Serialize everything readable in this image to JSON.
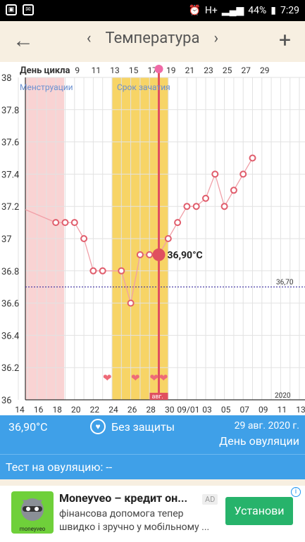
{
  "statusbar": {
    "battery": "44%",
    "time": "7:29",
    "network": "H+"
  },
  "header": {
    "title": "Температура",
    "back": "←",
    "prev": "‹",
    "next": "›",
    "add": "+"
  },
  "chart": {
    "cycle_label": "День цикла",
    "period_label": "Менструации",
    "fertile_label": "Срок зачатия",
    "ref_label": "36,70",
    "selected_label": "36,90°C",
    "year_label": "2020",
    "month_marker": "авг.",
    "y_ticks": [
      "38",
      "37.8",
      "37.6",
      "37.4",
      "37.2",
      "37",
      "36.8",
      "36.6",
      "36.4",
      "36.2",
      "36"
    ],
    "top_ticks": [
      "9",
      "11",
      "13",
      "15",
      "17",
      "19",
      "21",
      "23",
      "25",
      "27",
      "29"
    ],
    "bottom_ticks": [
      "14",
      "16",
      "18",
      "20",
      "22",
      "24",
      "26",
      "28",
      "30",
      "09/01",
      "03",
      "05",
      "07",
      "09",
      "11",
      "13"
    ]
  },
  "chart_data": {
    "type": "line",
    "title": "Температура",
    "ylim": [
      36,
      38
    ],
    "x_days": [
      18,
      19,
      20,
      21,
      22,
      23,
      25,
      26,
      27,
      28,
      29,
      30,
      31,
      32,
      33,
      34,
      35,
      36,
      37,
      38,
      39
    ],
    "y_temps": [
      37.1,
      37.1,
      37.1,
      37.0,
      36.8,
      36.8,
      36.8,
      36.6,
      36.9,
      36.9,
      36.9,
      37.0,
      37.1,
      37.2,
      37.2,
      37.25,
      37.4,
      37.2,
      37.3,
      37.4,
      37.5
    ],
    "selected": {
      "day": 29,
      "temp": 36.9
    },
    "reference_line": 36.7,
    "period_days": [
      14,
      18.9
    ],
    "fertile_days": [
      24,
      30
    ],
    "hearts_days": [
      23.5,
      26.5,
      28.5,
      29.5
    ],
    "axis_min_day": 14,
    "axis_max_day": 44
  },
  "info": {
    "temp": "36,90°C",
    "protection": "Без защиты",
    "date": "29 авг. 2020 г.",
    "day_type": "День овуляции"
  },
  "ovtest": {
    "label": "Тест на овуляцию: --"
  },
  "ad": {
    "title": "Moneyveo – кредит он...",
    "badge": "AD",
    "text": "фінансова допомога тепер швидко і зручно у мобільному ...",
    "cta": "Установи",
    "brand": "moneyveo"
  }
}
